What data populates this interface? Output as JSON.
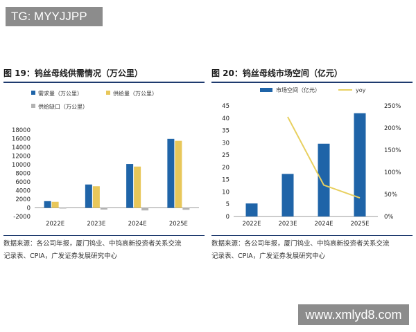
{
  "watermarks": {
    "top": "TG: MYYJJPP",
    "bottom": "www.xmlyd8.com"
  },
  "left_panel": {
    "figure_title": "图 19：钨丝母线供需情况（万公里）",
    "source_line1": "数据来源：各公司年报，厦门钨业、中钨高新投资者关系交流",
    "source_line2": "记录表、CPIA，广发证券发展研究中心"
  },
  "right_panel": {
    "figure_title": "图 20：钨丝母线市场空间（亿元）",
    "source_line1": "数据来源：各公司年报，厦门钨业、中钨高新投资者关系交流",
    "source_line2": "记录表、CPIA，广发证券发展研究中心"
  },
  "chart_data": [
    {
      "type": "bar",
      "categories": [
        "2022E",
        "2023E",
        "2024E",
        "2025E"
      ],
      "series": [
        {
          "name": "需求量（万公里）",
          "values": [
            1550,
            5400,
            10150,
            15950
          ],
          "color": "#1f64a8"
        },
        {
          "name": "供给量（万公里）",
          "values": [
            1400,
            5000,
            9550,
            15500
          ],
          "color": "#e8c75a"
        },
        {
          "name": "供给缺口（万公里）",
          "values": [
            -150,
            -400,
            -600,
            -450
          ],
          "color": "#b3b3b3"
        }
      ],
      "ylim": [
        -2000,
        18000
      ],
      "yticks": [
        -2000,
        0,
        2000,
        4000,
        6000,
        8000,
        10000,
        12000,
        14000,
        16000,
        18000
      ],
      "legend": "top-left",
      "grid": false
    },
    {
      "type": "bar",
      "categories": [
        "2022E",
        "2023E",
        "2024E",
        "2025E"
      ],
      "series": [
        {
          "name": "市场空间（亿元）",
          "type": "bar",
          "axis": "left",
          "values": [
            5.3,
            17.3,
            29.6,
            42
          ],
          "color": "#1f64a8"
        },
        {
          "name": "yoy",
          "type": "line",
          "axis": "right",
          "values": [
            null,
            2.25,
            0.71,
            0.42
          ],
          "color": "#e8d060"
        }
      ],
      "ylim": [
        0,
        45
      ],
      "yticks": [
        0,
        5,
        10,
        15,
        20,
        25,
        30,
        35,
        40,
        45
      ],
      "y2lim": [
        0,
        2.5
      ],
      "y2ticks": [
        "0%",
        "50%",
        "100%",
        "150%",
        "200%",
        "250%"
      ],
      "legend": "top-center",
      "grid": false
    }
  ]
}
